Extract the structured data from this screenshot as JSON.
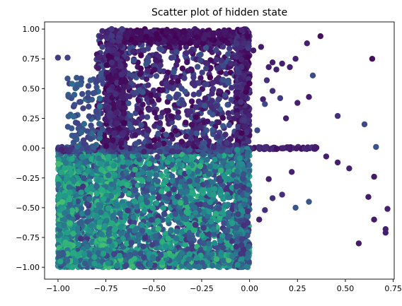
{
  "chart_data": {
    "type": "scatter",
    "title": "Scatter plot of hidden state",
    "xlabel": "",
    "ylabel": "",
    "xlim": [
      -1.07,
      0.755
    ],
    "ylim": [
      -1.1,
      1.06
    ],
    "x_ticks": [
      -1.0,
      -0.75,
      -0.5,
      -0.25,
      0.0,
      0.25,
      0.5,
      0.75
    ],
    "x_tick_labels": [
      "−1.00",
      "−0.75",
      "−0.50",
      "−0.25",
      "0.00",
      "0.25",
      "0.50",
      "0.75"
    ],
    "y_ticks": [
      -1.0,
      -0.75,
      -0.5,
      -0.25,
      0.0,
      0.25,
      0.5,
      0.75,
      1.0
    ],
    "y_tick_labels": [
      "−1.00",
      "−0.75",
      "−0.50",
      "−0.25",
      "0.00",
      "0.25",
      "0.50",
      "0.75",
      "1.00"
    ],
    "grid": false,
    "legend": "none",
    "colormap": "viridis",
    "colors": {
      "dark_purple": "#440154",
      "purple": "#472c7a",
      "indigo": "#3b528b",
      "blue": "#2c728e",
      "teal": "#21918c",
      "green": "#28ae80",
      "light_green": "#5ec962",
      "yellow": "#fde725"
    },
    "points": [
      [
        0.37,
        0.94,
        0.05
      ],
      [
        0.33,
        0.61,
        0.25
      ],
      [
        -1.0,
        0.76,
        0.2
      ],
      [
        -0.95,
        0.76,
        0.22
      ],
      [
        0.46,
        0.27,
        0.15
      ],
      [
        0.6,
        0.2,
        0.25
      ],
      [
        0.66,
        0.01,
        0.28
      ],
      [
        0.64,
        0.75,
        0.05
      ],
      [
        0.72,
        -0.51,
        0.1
      ],
      [
        0.71,
        -0.68,
        0.1
      ],
      [
        0.71,
        -0.71,
        0.1
      ],
      [
        0.65,
        -0.6,
        0.08
      ],
      [
        0.62,
        -0.41,
        0.08
      ],
      [
        0.57,
        -0.8,
        0.08
      ],
      [
        0.65,
        -0.24,
        0.08
      ],
      [
        0.52,
        -0.17,
        0.1
      ],
      [
        0.46,
        -0.12,
        0.1
      ],
      [
        0.4,
        -0.07,
        0.1
      ],
      [
        0.31,
        -0.45,
        0.3
      ],
      [
        0.24,
        -0.5,
        0.3
      ],
      [
        0.17,
        -0.39,
        0.15
      ],
      [
        0.12,
        -0.42,
        0.15
      ],
      [
        0.08,
        -0.52,
        0.15
      ],
      [
        0.05,
        -0.6,
        0.1
      ],
      [
        0.1,
        -0.26,
        0.1
      ],
      [
        0.22,
        -0.2,
        0.1
      ],
      [
        0.31,
        0.43,
        0.08
      ],
      [
        0.25,
        0.38,
        0.1
      ],
      [
        0.19,
        0.25,
        0.1
      ],
      [
        0.12,
        0.48,
        0.15
      ],
      [
        0.07,
        0.41,
        0.1
      ],
      [
        0.12,
        0.72,
        0.1
      ],
      [
        0.17,
        0.71,
        0.1
      ],
      [
        0.21,
        0.68,
        0.1
      ],
      [
        0.24,
        0.75,
        0.1
      ],
      [
        0.3,
        0.88,
        0.1
      ],
      [
        0.04,
        0.15,
        0.25
      ],
      [
        0.16,
        0.42,
        0.2
      ],
      [
        0.08,
        0.37,
        0.25
      ],
      [
        0.09,
        0.57,
        0.15
      ],
      [
        0.02,
        0.82,
        0.08
      ],
      [
        0.06,
        0.85,
        0.08
      ],
      [
        0.1,
        0.68,
        0.1
      ],
      [
        0.14,
        0.66,
        0.1
      ]
    ],
    "clusters": [
      {
        "x": [
          -1.0,
          0.0
        ],
        "y": [
          -1.0,
          0.0
        ],
        "n": 2600,
        "c": [
          0.15,
          0.75
        ]
      },
      {
        "x": [
          -1.0,
          -0.92
        ],
        "y": [
          -1.0,
          0.0
        ],
        "n": 500,
        "c": [
          0.35,
          0.8
        ]
      },
      {
        "x": [
          -0.8,
          -0.7
        ],
        "y": [
          -1.0,
          0.0
        ],
        "n": 450,
        "c": [
          0.35,
          0.8
        ]
      },
      {
        "x": [
          -1.0,
          0.0
        ],
        "y": [
          -1.0,
          -0.88
        ],
        "n": 650,
        "c": [
          0.2,
          0.8
        ]
      },
      {
        "x": [
          -1.0,
          0.0
        ],
        "y": [
          -0.03,
          0.01
        ],
        "n": 260,
        "c": [
          0.1,
          0.35
        ]
      },
      {
        "x": [
          -0.8,
          0.0
        ],
        "y": [
          0.0,
          1.0
        ],
        "n": 900,
        "c": [
          0.0,
          0.3
        ]
      },
      {
        "x": [
          -0.75,
          0.0
        ],
        "y": [
          0.88,
          0.99
        ],
        "n": 360,
        "c": [
          0.0,
          0.1
        ]
      },
      {
        "x": [
          -0.75,
          -0.65
        ],
        "y": [
          0.0,
          1.0
        ],
        "n": 260,
        "c": [
          0.0,
          0.2
        ]
      },
      {
        "x": [
          -0.07,
          0.0
        ],
        "y": [
          0.0,
          1.0
        ],
        "n": 250,
        "c": [
          0.0,
          0.2
        ]
      },
      {
        "x": [
          0.0,
          0.35
        ],
        "y": [
          -0.01,
          0.01
        ],
        "n": 60,
        "c": [
          0.05,
          0.15
        ]
      },
      {
        "x": [
          -0.95,
          -0.78
        ],
        "y": [
          0.0,
          0.6
        ],
        "n": 90,
        "c": [
          0.2,
          0.4
        ]
      },
      {
        "x": [
          -0.07,
          0.0
        ],
        "y": [
          -1.0,
          0.0
        ],
        "n": 260,
        "c": [
          0.15,
          0.6
        ]
      }
    ]
  }
}
